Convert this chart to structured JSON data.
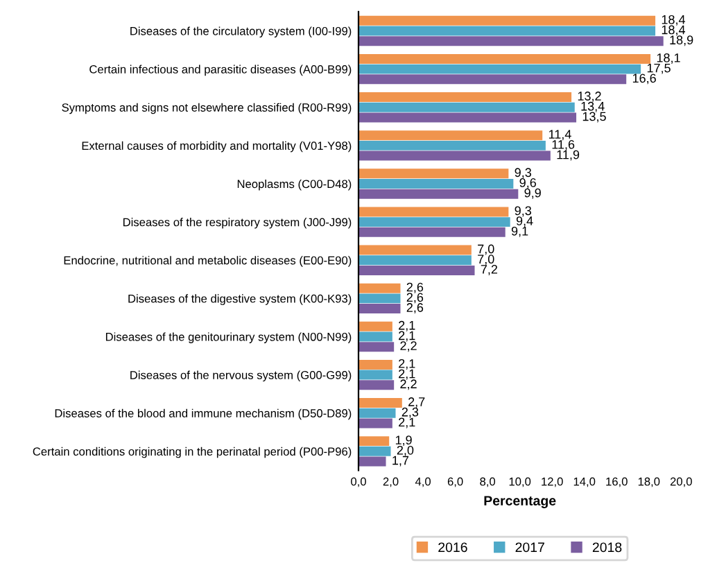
{
  "chart_data": {
    "type": "bar",
    "orientation": "horizontal",
    "xlabel": "Percentage",
    "categories": [
      "Diseases of the circulatory system (I00-I99)",
      "Certain infectious and parasitic diseases (A00-B99)",
      "Symptoms and signs not elsewhere classified (R00-R99)",
      "External causes of morbidity and mortality (V01-Y98)",
      "Neoplasms (C00-D48)",
      "Diseases of the respiratory system (J00-J99)",
      "Endocrine, nutritional and metabolic diseases (E00-E90)",
      "Diseases of the digestive system (K00-K93)",
      "Diseases of the genitourinary system (N00-N99)",
      "Diseases of the nervous system (G00-G99)",
      "Diseases of the blood and immune mechanism (D50-D89)",
      "Certain conditions originating in the perinatal period (P00-P96)"
    ],
    "series": [
      {
        "name": "2016",
        "color": "#f0944d",
        "values": [
          18.4,
          18.1,
          13.2,
          11.4,
          9.3,
          9.3,
          7.0,
          2.6,
          2.1,
          2.1,
          2.7,
          1.9
        ],
        "value_labels": [
          "18,4",
          "18,1",
          "13,2",
          "11,4",
          "9,3",
          "9,3",
          "7,0",
          "2,6",
          "2,1",
          "2,1",
          "2,7",
          "1,9"
        ]
      },
      {
        "name": "2017",
        "color": "#4fa9c8",
        "values": [
          18.4,
          17.5,
          13.4,
          11.6,
          9.6,
          9.4,
          7.0,
          2.6,
          2.1,
          2.1,
          2.3,
          2.0
        ],
        "value_labels": [
          "18,4",
          "17,5",
          "13,4",
          "11,6",
          "9,6",
          "9,4",
          "7,0",
          "2,6",
          "2,1",
          "2,1",
          "2,3",
          "2,0"
        ]
      },
      {
        "name": "2018",
        "color": "#7b5ea0",
        "values": [
          18.9,
          16.6,
          13.5,
          11.9,
          9.9,
          9.1,
          7.2,
          2.6,
          2.2,
          2.2,
          2.1,
          1.7
        ],
        "value_labels": [
          "18,9",
          "16,6",
          "13,5",
          "11,9",
          "9,9",
          "9,1",
          "7,2",
          "2,6",
          "2,2",
          "2,2",
          "2,1",
          "1,7"
        ]
      }
    ],
    "xlim": [
      0,
      20
    ],
    "xticks": [
      {
        "value": 0,
        "label": "0,0"
      },
      {
        "value": 2,
        "label": "2,0"
      },
      {
        "value": 4,
        "label": "4,0"
      },
      {
        "value": 6,
        "label": "6,0"
      },
      {
        "value": 8,
        "label": "8,0"
      },
      {
        "value": 10,
        "label": "10,0"
      },
      {
        "value": 12,
        "label": "12,0"
      },
      {
        "value": 14,
        "label": "14,0"
      },
      {
        "value": 16,
        "label": "16,0"
      },
      {
        "value": 18,
        "label": "18,0"
      },
      {
        "value": 20,
        "label": "20,0"
      }
    ],
    "grid": false,
    "legend": "bottom"
  }
}
